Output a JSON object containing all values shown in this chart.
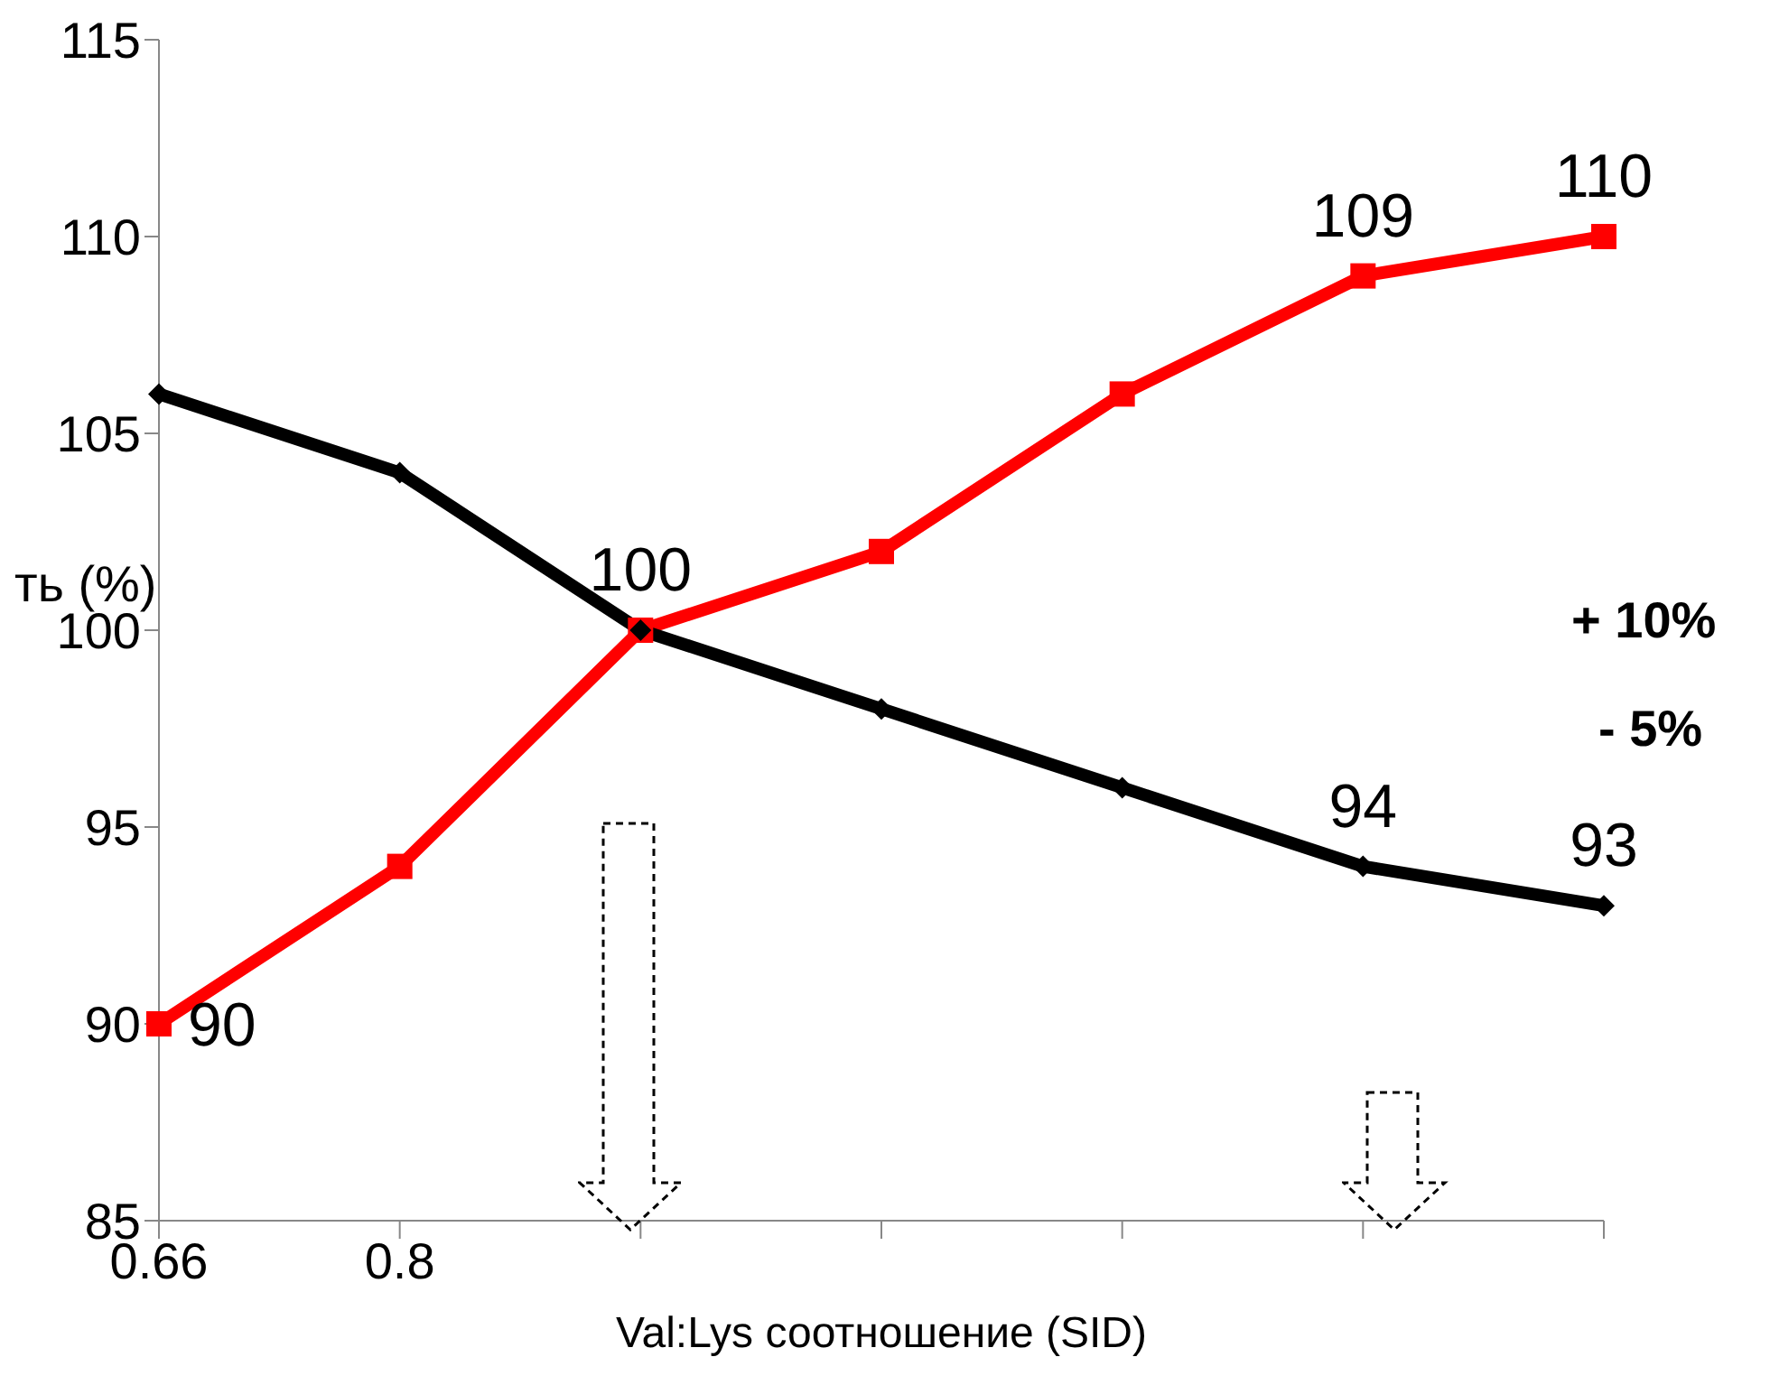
{
  "chart_data": {
    "type": "line",
    "xlabel": "Val:Lys соотношение (SID)",
    "ylabel": "ть (%)",
    "categories": [
      "0.66",
      "0.8",
      null,
      null,
      null,
      null,
      null
    ],
    "series": [
      {
        "color": "#ff0000",
        "marker": "square",
        "values": [
          90,
          94,
          100,
          102,
          106,
          109,
          110
        ],
        "value_labels": [
          "90",
          null,
          "100",
          null,
          null,
          "109",
          "110"
        ]
      },
      {
        "color": "#000000",
        "marker": "diamond",
        "values": [
          106,
          104,
          100,
          98,
          96,
          94,
          93
        ],
        "value_labels": [
          null,
          null,
          null,
          null,
          null,
          "94",
          "93"
        ]
      }
    ],
    "ylim": [
      85,
      115
    ],
    "yticks": [
      85,
      90,
      95,
      100,
      105,
      110,
      115
    ],
    "grid": false,
    "legend": false,
    "annotations": [
      "+ 10%",
      "- 5%"
    ]
  }
}
